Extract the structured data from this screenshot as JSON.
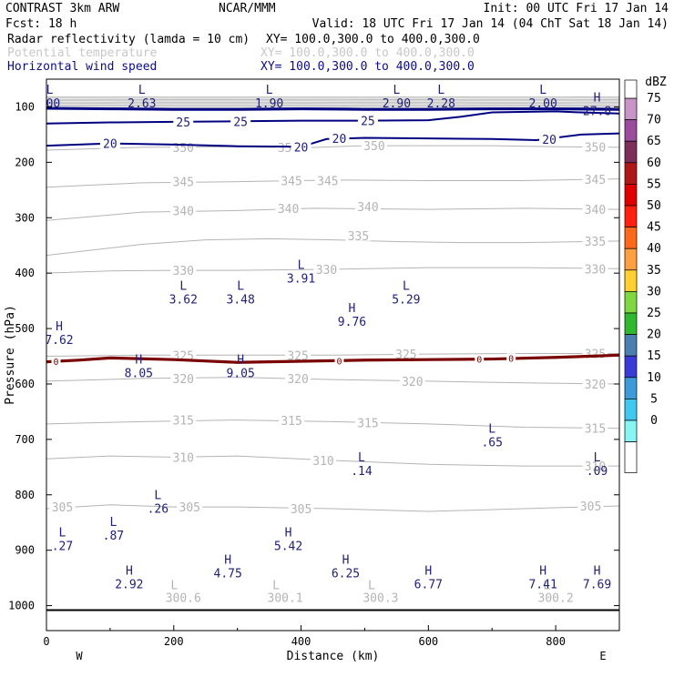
{
  "header": {
    "model": "CONTRAST   3km ARW",
    "center": "NCAR/MMM",
    "init": "Init: 00 UTC Fri 17 Jan 14",
    "fcst": "Fcst:   18 h",
    "valid": "Valid: 18 UTC Fri 17 Jan 14 (04 ChT Sat 18 Jan 14)"
  },
  "fields": [
    {
      "name": "Radar reflectivity (lamda = 10 cm)",
      "xy": "XY= 100.0,300.0 to 400.0,300.0",
      "color": "#000000"
    },
    {
      "name": "Potential temperature",
      "xy": "XY= 100.0,300.0 to 400.0,300.0",
      "color": "#c8c8c8"
    },
    {
      "name": "Horizontal wind speed",
      "xy": "XY= 100.0,300.0 to 400.0,300.0",
      "color": "#0c0c8c"
    }
  ],
  "chart_data": {
    "type": "line",
    "title": "",
    "xlabel": "Distance (km)",
    "ylabel": "Pressure (hPa)",
    "xlim": [
      0,
      900
    ],
    "ylim": [
      1045,
      50
    ],
    "xticks": [
      0,
      200,
      400,
      600,
      800
    ],
    "yticks": [
      100,
      200,
      300,
      400,
      500,
      600,
      700,
      800,
      900,
      1000
    ],
    "x_end_labels": {
      "left": "W",
      "right": "E"
    },
    "grid": false,
    "colors": {
      "theta": "#b4b4b4",
      "wind": "#000080",
      "zero_line": "#7a0000",
      "label": "#20207a"
    },
    "theta_contours": [
      {
        "level": 350,
        "points": [
          [
            0,
            178
          ],
          [
            150,
            173
          ],
          [
            300,
            172
          ],
          [
            400,
            174
          ],
          [
            500,
            170
          ],
          [
            600,
            170
          ],
          [
            700,
            170
          ],
          [
            800,
            172
          ],
          [
            900,
            173
          ]
        ],
        "labels": [
          [
            215,
            173,
            "350"
          ],
          [
            380,
            173,
            "350"
          ],
          [
            515,
            170,
            "350"
          ],
          [
            862,
            172,
            "350"
          ]
        ]
      },
      {
        "level": 345,
        "points": [
          [
            0,
            245
          ],
          [
            150,
            237
          ],
          [
            300,
            235
          ],
          [
            450,
            232
          ],
          [
            600,
            233
          ],
          [
            750,
            233
          ],
          [
            900,
            230
          ]
        ],
        "labels": [
          [
            215,
            235,
            "345"
          ],
          [
            385,
            233,
            "345"
          ],
          [
            442,
            233,
            "345"
          ],
          [
            862,
            231,
            "345"
          ]
        ]
      },
      {
        "level": 340,
        "points": [
          [
            0,
            305
          ],
          [
            150,
            290
          ],
          [
            300,
            287
          ],
          [
            420,
            283
          ],
          [
            600,
            285
          ],
          [
            750,
            283
          ],
          [
            900,
            285
          ]
        ],
        "labels": [
          [
            215,
            287,
            "340"
          ],
          [
            380,
            283,
            "340"
          ],
          [
            505,
            280,
            "340"
          ],
          [
            862,
            285,
            "340"
          ]
        ]
      },
      {
        "level": 335,
        "points": [
          [
            0,
            368
          ],
          [
            150,
            348
          ],
          [
            250,
            340
          ],
          [
            350,
            338
          ],
          [
            450,
            340
          ],
          [
            550,
            343
          ],
          [
            650,
            345
          ],
          [
            750,
            345
          ],
          [
            900,
            342
          ]
        ],
        "labels": [
          [
            490,
            332,
            "335"
          ],
          [
            862,
            342,
            "335"
          ]
        ]
      },
      {
        "level": 330,
        "points": [
          [
            0,
            400
          ],
          [
            100,
            396
          ],
          [
            200,
            395
          ],
          [
            300,
            395
          ],
          [
            450,
            393
          ],
          [
            600,
            390
          ],
          [
            750,
            390
          ],
          [
            900,
            392
          ]
        ],
        "labels": [
          [
            215,
            395,
            "330"
          ],
          [
            440,
            393,
            "330"
          ],
          [
            862,
            392,
            "330"
          ]
        ]
      },
      {
        "level": 325,
        "points": [
          [
            0,
            550
          ],
          [
            150,
            548
          ],
          [
            300,
            548
          ],
          [
            450,
            548
          ],
          [
            600,
            546
          ],
          [
            750,
            545
          ],
          [
            900,
            545
          ]
        ],
        "labels": [
          [
            215,
            548,
            "325"
          ],
          [
            395,
            548,
            "325"
          ],
          [
            565,
            546,
            "325"
          ],
          [
            862,
            545,
            "325"
          ]
        ]
      },
      {
        "level": 320,
        "points": [
          [
            0,
            595
          ],
          [
            150,
            590
          ],
          [
            300,
            588
          ],
          [
            450,
            592
          ],
          [
            600,
            595
          ],
          [
            750,
            598
          ],
          [
            900,
            600
          ]
        ],
        "labels": [
          [
            215,
            590,
            "320"
          ],
          [
            395,
            590,
            "320"
          ],
          [
            575,
            595,
            "320"
          ],
          [
            862,
            600,
            "320"
          ]
        ]
      },
      {
        "level": 315,
        "points": [
          [
            0,
            672
          ],
          [
            150,
            668
          ],
          [
            300,
            665
          ],
          [
            450,
            668
          ],
          [
            600,
            672
          ],
          [
            750,
            678
          ],
          [
            900,
            680
          ]
        ],
        "labels": [
          [
            215,
            665,
            "315"
          ],
          [
            385,
            666,
            "315"
          ],
          [
            505,
            670,
            "315"
          ],
          [
            862,
            680,
            "315"
          ]
        ]
      },
      {
        "level": 310,
        "points": [
          [
            0,
            735
          ],
          [
            100,
            730
          ],
          [
            200,
            732
          ],
          [
            300,
            730
          ],
          [
            450,
            738
          ],
          [
            600,
            745
          ],
          [
            750,
            748
          ],
          [
            900,
            748
          ]
        ],
        "labels": [
          [
            215,
            732,
            "310"
          ],
          [
            435,
            738,
            "310"
          ],
          [
            862,
            748,
            "310"
          ]
        ]
      },
      {
        "level": 305,
        "points": [
          [
            0,
            825
          ],
          [
            100,
            818
          ],
          [
            200,
            822
          ],
          [
            300,
            822
          ],
          [
            450,
            825
          ],
          [
            600,
            830
          ],
          [
            750,
            825
          ],
          [
            900,
            820
          ]
        ],
        "labels": [
          [
            25,
            822,
            "305"
          ],
          [
            225,
            822,
            "305"
          ],
          [
            400,
            825,
            "305"
          ],
          [
            855,
            820,
            "305"
          ]
        ]
      }
    ],
    "bottom_theta_labels": [
      [
        215,
        985,
        "300.6"
      ],
      [
        375,
        985,
        "300.1"
      ],
      [
        525,
        985,
        "300.3"
      ],
      [
        800,
        985,
        "300.2"
      ]
    ],
    "wind_contours": [
      {
        "level": 25,
        "points": [
          [
            0,
            130
          ],
          [
            100,
            128
          ],
          [
            200,
            127
          ],
          [
            300,
            126
          ],
          [
            400,
            125
          ],
          [
            500,
            125
          ],
          [
            600,
            124
          ],
          [
            650,
            118
          ],
          [
            700,
            110
          ],
          [
            800,
            108
          ],
          [
            840,
            110
          ],
          [
            900,
            112
          ]
        ],
        "labels": [
          [
            215,
            127,
            "25"
          ],
          [
            305,
            126,
            "25"
          ],
          [
            505,
            125,
            "25"
          ]
        ]
      },
      {
        "level": 20,
        "points": [
          [
            0,
            170
          ],
          [
            50,
            168
          ],
          [
            100,
            166
          ],
          [
            200,
            168
          ],
          [
            300,
            171
          ],
          [
            400,
            172
          ],
          [
            440,
            158
          ],
          [
            500,
            156
          ],
          [
            600,
            157
          ],
          [
            700,
            158
          ],
          [
            770,
            160
          ],
          [
            840,
            150
          ],
          [
            900,
            148
          ]
        ],
        "labels": [
          [
            100,
            166,
            "20"
          ],
          [
            400,
            172,
            "20"
          ],
          [
            460,
            157,
            "20"
          ],
          [
            790,
            158,
            "20"
          ]
        ]
      }
    ],
    "wind_top_band": [
      [
        0,
        102
      ],
      [
        100,
        103
      ],
      [
        200,
        104
      ],
      [
        300,
        104
      ],
      [
        400,
        103
      ],
      [
        500,
        104
      ],
      [
        600,
        104
      ],
      [
        700,
        103
      ],
      [
        800,
        103
      ],
      [
        900,
        104
      ]
    ],
    "zero_line": {
      "points": [
        [
          0,
          560
        ],
        [
          50,
          557
        ],
        [
          100,
          553
        ],
        [
          200,
          556
        ],
        [
          300,
          561
        ],
        [
          400,
          559
        ],
        [
          500,
          557
        ],
        [
          600,
          556
        ],
        [
          700,
          555
        ],
        [
          800,
          552
        ],
        [
          900,
          548
        ]
      ],
      "labels": [
        [
          15,
          559,
          "0"
        ],
        [
          460,
          558,
          "0"
        ],
        [
          680,
          555,
          "0"
        ],
        [
          730,
          553,
          "0"
        ]
      ]
    },
    "extrema": [
      {
        "kind": "L",
        "x": 5,
        "p": 76,
        "value": ".00"
      },
      {
        "kind": "L",
        "x": 150,
        "p": 76,
        "value": "2.63"
      },
      {
        "kind": "L",
        "x": 350,
        "p": 76,
        "value": "1.90"
      },
      {
        "kind": "L",
        "x": 550,
        "p": 76,
        "value": "2.90"
      },
      {
        "kind": "L",
        "x": 620,
        "p": 76,
        "value": "2.28"
      },
      {
        "kind": "L",
        "x": 780,
        "p": 76,
        "value": "2.00"
      },
      {
        "kind": "H",
        "x": 865,
        "p": 90,
        "value": "27.8"
      },
      {
        "kind": "L",
        "x": 215,
        "p": 430,
        "value": "3.62"
      },
      {
        "kind": "L",
        "x": 305,
        "p": 430,
        "value": "3.48"
      },
      {
        "kind": "L",
        "x": 400,
        "p": 392,
        "value": "3.91"
      },
      {
        "kind": "L",
        "x": 565,
        "p": 430,
        "value": "5.29"
      },
      {
        "kind": "H",
        "x": 480,
        "p": 470,
        "value": "9.76"
      },
      {
        "kind": "H",
        "x": 20,
        "p": 503,
        "value": "7.62"
      },
      {
        "kind": "H",
        "x": 145,
        "p": 563,
        "value": "8.05"
      },
      {
        "kind": "H",
        "x": 305,
        "p": 563,
        "value": "9.05"
      },
      {
        "kind": "L",
        "x": 700,
        "p": 688,
        "value": ".65"
      },
      {
        "kind": "L",
        "x": 495,
        "p": 740,
        "value": ".14"
      },
      {
        "kind": "L",
        "x": 865,
        "p": 740,
        "value": ".09"
      },
      {
        "kind": "L",
        "x": 175,
        "p": 808,
        "value": ".26"
      },
      {
        "kind": "L",
        "x": 105,
        "p": 856,
        "value": ".87"
      },
      {
        "kind": "L",
        "x": 25,
        "p": 875,
        "value": ".27"
      },
      {
        "kind": "H",
        "x": 380,
        "p": 875,
        "value": "5.42"
      },
      {
        "kind": "H",
        "x": 130,
        "p": 944,
        "value": "2.92"
      },
      {
        "kind": "H",
        "x": 285,
        "p": 924,
        "value": "4.75"
      },
      {
        "kind": "H",
        "x": 470,
        "p": 924,
        "value": "6.25"
      },
      {
        "kind": "H",
        "x": 600,
        "p": 944,
        "value": "6.77"
      },
      {
        "kind": "H",
        "x": 780,
        "p": 944,
        "value": "7.41"
      },
      {
        "kind": "H",
        "x": 865,
        "p": 944,
        "value": "7.69"
      }
    ],
    "theta_low_marks": [
      [
        215,
        962,
        "L"
      ],
      [
        375,
        962,
        "L"
      ],
      [
        525,
        962,
        "L"
      ],
      [
        800,
        962,
        "L"
      ]
    ]
  },
  "colorbar": {
    "unit": "dBZ",
    "levels": [
      {
        "label": "75",
        "color": "#c994c7"
      },
      {
        "label": "70",
        "color": "#9a4d9d"
      },
      {
        "label": "65",
        "color": "#7b2f5a"
      },
      {
        "label": "60",
        "color": "#b01818"
      },
      {
        "label": "55",
        "color": "#e00000"
      },
      {
        "label": "50",
        "color": "#ff2010"
      },
      {
        "label": "45",
        "color": "#ff6a1a"
      },
      {
        "label": "40",
        "color": "#ffa040"
      },
      {
        "label": "35",
        "color": "#ffd030"
      },
      {
        "label": "30",
        "color": "#80d840"
      },
      {
        "label": "25",
        "color": "#30b830"
      },
      {
        "label": "20",
        "color": "#4a7fb0"
      },
      {
        "label": "15",
        "color": "#3a3ad8"
      },
      {
        "label": "10",
        "color": "#3e9ad8"
      },
      {
        "label": "5",
        "color": "#40c8f0"
      },
      {
        "label": "0",
        "color": "#88f4f4"
      }
    ]
  }
}
